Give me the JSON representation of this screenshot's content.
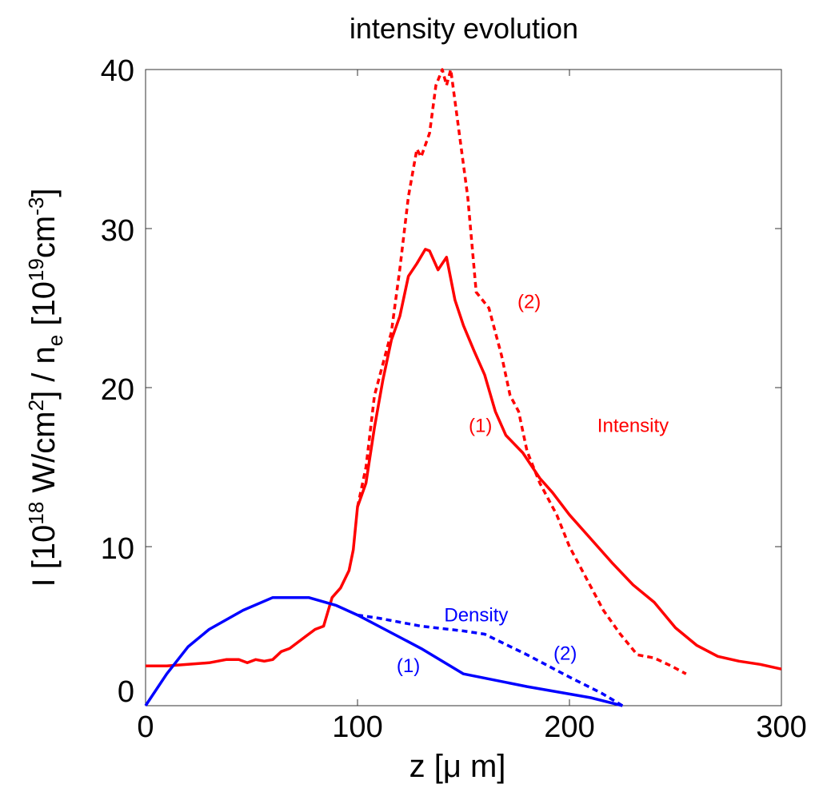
{
  "chart_data": {
    "type": "line",
    "title": "intensity evolution",
    "xlabel_parts": [
      "z  [",
      "μ",
      " m]"
    ],
    "ylabel_parts": {
      "a": "I [10",
      "sup1": "18",
      "b": " W/cm",
      "sup2": "2",
      "c": "] / n",
      "sub1": "e",
      "d": " [10",
      "sup3": "19",
      "e": "cm",
      "sup4": "-3",
      "f": "]"
    },
    "xlim": [
      0,
      300
    ],
    "ylim": [
      0,
      40
    ],
    "xticks": [
      0,
      100,
      200,
      300
    ],
    "yticks": [
      0,
      10,
      20,
      30,
      40
    ],
    "xtick_labels": [
      "0",
      "100",
      "200",
      "300"
    ],
    "ytick_labels": [
      "0",
      "10",
      "20",
      "30",
      "40"
    ],
    "series": [
      {
        "name": "Intensity (1)",
        "color": "#ff0000",
        "dash": "solid",
        "points": [
          [
            0,
            2.5
          ],
          [
            10,
            2.5
          ],
          [
            20,
            2.6
          ],
          [
            30,
            2.7
          ],
          [
            38,
            2.9
          ],
          [
            44,
            2.9
          ],
          [
            48,
            2.7
          ],
          [
            52,
            2.9
          ],
          [
            56,
            2.8
          ],
          [
            60,
            2.9
          ],
          [
            64,
            3.4
          ],
          [
            68,
            3.6
          ],
          [
            72,
            4.0
          ],
          [
            76,
            4.4
          ],
          [
            80,
            4.8
          ],
          [
            84,
            5.0
          ],
          [
            88,
            6.8
          ],
          [
            92,
            7.4
          ],
          [
            96,
            8.5
          ],
          [
            98,
            9.8
          ],
          [
            100,
            12.5
          ],
          [
            104,
            14.0
          ],
          [
            108,
            17.5
          ],
          [
            112,
            20.5
          ],
          [
            116,
            23.0
          ],
          [
            120,
            24.5
          ],
          [
            124,
            27.0
          ],
          [
            128,
            27.8
          ],
          [
            132,
            28.7
          ],
          [
            134,
            28.6
          ],
          [
            138,
            27.4
          ],
          [
            142,
            28.2
          ],
          [
            146,
            25.5
          ],
          [
            150,
            23.9
          ],
          [
            155,
            22.3
          ],
          [
            160,
            20.8
          ],
          [
            165,
            18.5
          ],
          [
            170,
            17.0
          ],
          [
            178,
            15.9
          ],
          [
            186,
            14.3
          ],
          [
            192,
            13.4
          ],
          [
            200,
            12.0
          ],
          [
            210,
            10.5
          ],
          [
            220,
            9.0
          ],
          [
            230,
            7.6
          ],
          [
            240,
            6.5
          ],
          [
            250,
            4.9
          ],
          [
            260,
            3.8
          ],
          [
            270,
            3.1
          ],
          [
            280,
            2.8
          ],
          [
            290,
            2.6
          ],
          [
            300,
            2.3
          ]
        ]
      },
      {
        "name": "Intensity (2)",
        "color": "#ff0000",
        "dash": "dashed",
        "points": [
          [
            100,
            12.5
          ],
          [
            104,
            15.0
          ],
          [
            108,
            19.5
          ],
          [
            112,
            21.5
          ],
          [
            116,
            23.5
          ],
          [
            120,
            27.5
          ],
          [
            124,
            32.0
          ],
          [
            128,
            35.0
          ],
          [
            130,
            34.5
          ],
          [
            134,
            36.0
          ],
          [
            137,
            39.0
          ],
          [
            140,
            40.0
          ],
          [
            142,
            39.0
          ],
          [
            144,
            40.0
          ],
          [
            148,
            36.0
          ],
          [
            152,
            32.0
          ],
          [
            156,
            26.0
          ],
          [
            162,
            25.0
          ],
          [
            168,
            22.0
          ],
          [
            172,
            19.5
          ],
          [
            176,
            18.5
          ],
          [
            180,
            16.0
          ],
          [
            186,
            14.0
          ],
          [
            194,
            12.0
          ],
          [
            200,
            10.0
          ],
          [
            208,
            8.0
          ],
          [
            216,
            6.0
          ],
          [
            224,
            4.5
          ],
          [
            232,
            3.2
          ],
          [
            240,
            3.0
          ],
          [
            248,
            2.5
          ],
          [
            255,
            2.0
          ]
        ]
      },
      {
        "name": "Density (1)",
        "color": "#0000ff",
        "dash": "solid",
        "points": [
          [
            0,
            0
          ],
          [
            10,
            2.0
          ],
          [
            20,
            3.7
          ],
          [
            30,
            4.8
          ],
          [
            46,
            6.0
          ],
          [
            60,
            6.8
          ],
          [
            77,
            6.8
          ],
          [
            90,
            6.3
          ],
          [
            100,
            5.7
          ],
          [
            110,
            5.0
          ],
          [
            130,
            3.6
          ],
          [
            150,
            2.0
          ],
          [
            180,
            1.2
          ],
          [
            210,
            0.5
          ],
          [
            225,
            0.0
          ]
        ]
      },
      {
        "name": "Density (2)",
        "color": "#0000ff",
        "dash": "dashed",
        "points": [
          [
            100,
            5.7
          ],
          [
            110,
            5.5
          ],
          [
            130,
            5.0
          ],
          [
            150,
            4.7
          ],
          [
            160,
            4.5
          ],
          [
            180,
            3.2
          ],
          [
            200,
            1.8
          ],
          [
            215,
            0.8
          ],
          [
            225,
            0.0
          ]
        ]
      }
    ],
    "annotations": [
      {
        "text": "(2)",
        "x": 181,
        "y": 25.0,
        "color": "#ff0000"
      },
      {
        "text": "(1)",
        "x": 158,
        "y": 17.2,
        "color": "#ff0000"
      },
      {
        "text": "Intensity",
        "x": 230,
        "y": 17.2,
        "color": "#ff0000"
      },
      {
        "text": "Density",
        "x": 156,
        "y": 5.3,
        "color": "#0000ff"
      },
      {
        "text": "(2)",
        "x": 198,
        "y": 2.9,
        "color": "#0000ff"
      },
      {
        "text": "(1)",
        "x": 124,
        "y": 2.1,
        "color": "#0000ff"
      }
    ]
  }
}
